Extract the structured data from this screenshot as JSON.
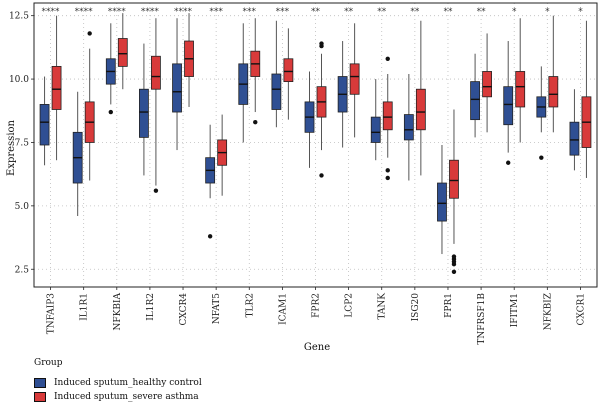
{
  "chart_data": {
    "type": "boxplot",
    "title": "",
    "xlabel": "Gene",
    "ylabel": "Expression",
    "ylim": [
      1.8,
      13.0
    ],
    "yticks": [
      2.5,
      5.0,
      7.5,
      10.0,
      12.5
    ],
    "ytick_labels": [
      "2.5",
      "5.0",
      "7.5",
      "10.0",
      "12.5"
    ],
    "grid": true,
    "legend_title": "Group",
    "legend_position": "bottom-left",
    "series": [
      {
        "name": "Induced sputum_healthy control",
        "color": "#2f4f93"
      },
      {
        "name": "Induced sputum_severe asthma",
        "color": "#d83a3a"
      }
    ],
    "categories": [
      "TNFAIP3",
      "IL1R1",
      "NFKBIA",
      "IL1R2",
      "CXCR4",
      "NFAT5",
      "TLR2",
      "ICAM1",
      "FPR2",
      "LCP2",
      "TANK",
      "ISG20",
      "FPR1",
      "TNFRSF1B",
      "IFITM1",
      "NFKBIZ",
      "CXCR1"
    ],
    "significance": [
      "****",
      "****",
      "****",
      "****",
      "****",
      "***",
      "***",
      "***",
      "**",
      "**",
      "**",
      "**",
      "**",
      "**",
      "*",
      "*",
      "*"
    ],
    "boxes": [
      {
        "gene": "TNFAIP3",
        "healthy": {
          "whislo": 6.6,
          "q1": 7.4,
          "median": 8.3,
          "q3": 9.0,
          "whishi": 10.1,
          "outliers": []
        },
        "asthma": {
          "whislo": 6.8,
          "q1": 8.8,
          "median": 9.6,
          "q3": 10.5,
          "whishi": 12.5,
          "outliers": []
        }
      },
      {
        "gene": "IL1R1",
        "healthy": {
          "whislo": 4.6,
          "q1": 5.9,
          "median": 6.9,
          "q3": 7.9,
          "whishi": 9.5,
          "outliers": []
        },
        "asthma": {
          "whislo": 6.0,
          "q1": 7.5,
          "median": 8.3,
          "q3": 9.1,
          "whishi": 11.2,
          "outliers": [
            11.8
          ]
        }
      },
      {
        "gene": "NFKBIA",
        "healthy": {
          "whislo": 9.0,
          "q1": 9.8,
          "median": 10.3,
          "q3": 10.8,
          "whishi": 12.2,
          "outliers": [
            8.7
          ]
        },
        "asthma": {
          "whislo": 9.6,
          "q1": 10.5,
          "median": 11.0,
          "q3": 11.6,
          "whishi": 12.6,
          "outliers": []
        }
      },
      {
        "gene": "IL1R2",
        "healthy": {
          "whislo": 6.2,
          "q1": 7.7,
          "median": 8.7,
          "q3": 9.6,
          "whishi": 11.4,
          "outliers": []
        },
        "asthma": {
          "whislo": 5.8,
          "q1": 9.6,
          "median": 10.1,
          "q3": 10.9,
          "whishi": 12.4,
          "outliers": [
            5.6
          ]
        }
      },
      {
        "gene": "CXCR4",
        "healthy": {
          "whislo": 7.2,
          "q1": 8.7,
          "median": 9.5,
          "q3": 10.6,
          "whishi": 12.4,
          "outliers": []
        },
        "asthma": {
          "whislo": 8.9,
          "q1": 10.1,
          "median": 10.8,
          "q3": 11.5,
          "whishi": 12.6,
          "outliers": []
        }
      },
      {
        "gene": "NFAT5",
        "healthy": {
          "whislo": 5.3,
          "q1": 5.9,
          "median": 6.4,
          "q3": 6.9,
          "whishi": 8.2,
          "outliers": [
            3.8
          ]
        },
        "asthma": {
          "whislo": 5.4,
          "q1": 6.6,
          "median": 7.1,
          "q3": 7.6,
          "whishi": 8.6,
          "outliers": []
        }
      },
      {
        "gene": "TLR2",
        "healthy": {
          "whislo": 7.5,
          "q1": 9.0,
          "median": 9.8,
          "q3": 10.6,
          "whishi": 12.2,
          "outliers": []
        },
        "asthma": {
          "whislo": 8.7,
          "q1": 10.1,
          "median": 10.6,
          "q3": 11.1,
          "whishi": 12.4,
          "outliers": [
            8.3
          ]
        }
      },
      {
        "gene": "ICAM1",
        "healthy": {
          "whislo": 8.1,
          "q1": 8.8,
          "median": 9.6,
          "q3": 10.2,
          "whishi": 12.3,
          "outliers": []
        },
        "asthma": {
          "whislo": 8.4,
          "q1": 9.9,
          "median": 10.3,
          "q3": 10.8,
          "whishi": 12.0,
          "outliers": []
        }
      },
      {
        "gene": "FPR2",
        "healthy": {
          "whislo": 6.5,
          "q1": 7.9,
          "median": 8.5,
          "q3": 9.1,
          "whishi": 10.3,
          "outliers": []
        },
        "asthma": {
          "whislo": 7.2,
          "q1": 8.5,
          "median": 9.1,
          "q3": 9.7,
          "whishi": 11.0,
          "outliers": [
            6.2,
            11.3,
            11.4
          ]
        }
      },
      {
        "gene": "LCP2",
        "healthy": {
          "whislo": 7.3,
          "q1": 8.7,
          "median": 9.4,
          "q3": 10.1,
          "whishi": 11.5,
          "outliers": []
        },
        "asthma": {
          "whislo": 7.7,
          "q1": 9.4,
          "median": 10.1,
          "q3": 10.6,
          "whishi": 12.2,
          "outliers": []
        }
      },
      {
        "gene": "TANK",
        "healthy": {
          "whislo": 6.8,
          "q1": 7.5,
          "median": 7.9,
          "q3": 8.5,
          "whishi": 10.0,
          "outliers": []
        },
        "asthma": {
          "whislo": 6.9,
          "q1": 8.0,
          "median": 8.5,
          "q3": 9.1,
          "whishi": 10.2,
          "outliers": [
            6.1,
            6.4,
            10.8
          ]
        }
      },
      {
        "gene": "ISG20",
        "healthy": {
          "whislo": 6.0,
          "q1": 7.6,
          "median": 8.0,
          "q3": 8.6,
          "whishi": 10.2,
          "outliers": []
        },
        "asthma": {
          "whislo": 6.2,
          "q1": 8.0,
          "median": 8.7,
          "q3": 9.6,
          "whishi": 12.3,
          "outliers": []
        }
      },
      {
        "gene": "FPR1",
        "healthy": {
          "whislo": 3.1,
          "q1": 4.4,
          "median": 5.1,
          "q3": 5.9,
          "whishi": 7.4,
          "outliers": []
        },
        "asthma": {
          "whislo": 3.5,
          "q1": 5.3,
          "median": 6.0,
          "q3": 6.8,
          "whishi": 8.8,
          "outliers": [
            2.4,
            2.7,
            2.8,
            2.9,
            3.0
          ]
        }
      },
      {
        "gene": "TNFRSF1B",
        "healthy": {
          "whislo": 7.7,
          "q1": 8.4,
          "median": 9.2,
          "q3": 9.9,
          "whishi": 11.0,
          "outliers": []
        },
        "asthma": {
          "whislo": 7.9,
          "q1": 9.3,
          "median": 9.7,
          "q3": 10.3,
          "whishi": 11.8,
          "outliers": []
        }
      },
      {
        "gene": "IFITM1",
        "healthy": {
          "whislo": 7.1,
          "q1": 8.2,
          "median": 9.0,
          "q3": 9.7,
          "whishi": 11.5,
          "outliers": [
            6.7
          ]
        },
        "asthma": {
          "whislo": 7.5,
          "q1": 8.9,
          "median": 9.7,
          "q3": 10.3,
          "whishi": 12.4,
          "outliers": []
        }
      },
      {
        "gene": "NFKBIZ",
        "healthy": {
          "whislo": 7.9,
          "q1": 8.5,
          "median": 8.9,
          "q3": 9.3,
          "whishi": 10.5,
          "outliers": [
            6.9
          ]
        },
        "asthma": {
          "whislo": 7.9,
          "q1": 8.9,
          "median": 9.4,
          "q3": 10.1,
          "whishi": 12.5,
          "outliers": []
        }
      },
      {
        "gene": "CXCR1",
        "healthy": {
          "whislo": 6.4,
          "q1": 7.0,
          "median": 7.6,
          "q3": 8.3,
          "whishi": 9.6,
          "outliers": []
        },
        "asthma": {
          "whislo": 6.1,
          "q1": 7.3,
          "median": 8.3,
          "q3": 9.3,
          "whishi": 12.3,
          "outliers": []
        }
      }
    ]
  }
}
